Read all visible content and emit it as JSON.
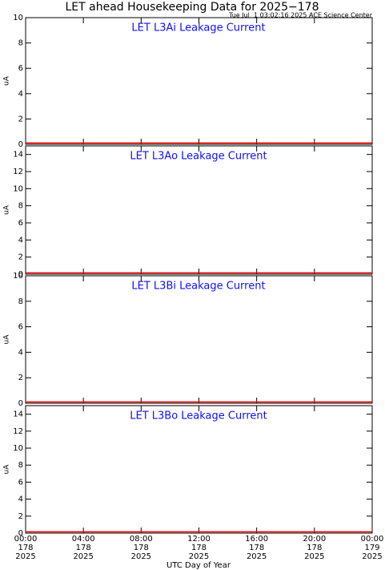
{
  "title": "LET ahead Housekeeping Data for 2025−178",
  "timestamp": "Tue Jul  1 03:02:16 2025 ACE Science Center",
  "x_label": "UTC Day of Year",
  "xlim": [
    0,
    24
  ],
  "xticks": [
    {
      "value": 0,
      "label": [
        "00:00",
        "178",
        "2025"
      ]
    },
    {
      "value": 4,
      "label": [
        "04:00",
        "178",
        "2025"
      ]
    },
    {
      "value": 8,
      "label": [
        "08:00",
        "178",
        "2025"
      ]
    },
    {
      "value": 12,
      "label": [
        "12:00",
        "178",
        "2025"
      ]
    },
    {
      "value": 16,
      "label": [
        "16:00",
        "178",
        "2025"
      ]
    },
    {
      "value": 20,
      "label": [
        "20:00",
        "178",
        "2025"
      ]
    },
    {
      "value": 24,
      "label": [
        "00:00",
        "179",
        "2025"
      ]
    }
  ],
  "chart_data": [
    {
      "type": "line",
      "title": "LET L3Ai Leakage Current",
      "y_label": "uA",
      "ylim": [
        0,
        10
      ],
      "yticks": [
        0,
        2,
        4,
        6,
        8,
        10
      ],
      "x": [
        0,
        24
      ],
      "series": [
        {
          "color": "#ff0000",
          "values": [
            0.1,
            0.1
          ]
        }
      ]
    },
    {
      "type": "line",
      "title": "LET L3Ao Leakage Current",
      "y_label": "uA",
      "ylim": [
        0,
        15
      ],
      "yticks": [
        0,
        2,
        4,
        6,
        8,
        10,
        12,
        14
      ],
      "x": [
        0,
        24
      ],
      "series": [
        {
          "color": "#ff0000",
          "values": [
            0.15,
            0.15
          ]
        }
      ]
    },
    {
      "type": "line",
      "title": "LET L3Bi Leakage Current",
      "y_label": "uA",
      "ylim": [
        0,
        10
      ],
      "yticks": [
        0,
        2,
        4,
        6,
        8,
        10
      ],
      "x": [
        0,
        24
      ],
      "series": [
        {
          "color": "#ff0000",
          "values": [
            0.1,
            0.1
          ]
        }
      ]
    },
    {
      "type": "line",
      "title": "LET L3Bo Leakage Current",
      "y_label": "uA",
      "ylim": [
        0,
        15
      ],
      "yticks": [
        0,
        2,
        4,
        6,
        8,
        10,
        12,
        14
      ],
      "x": [
        0,
        24
      ],
      "series": [
        {
          "color": "#ff0000",
          "values": [
            0.15,
            0.15
          ]
        }
      ]
    }
  ]
}
